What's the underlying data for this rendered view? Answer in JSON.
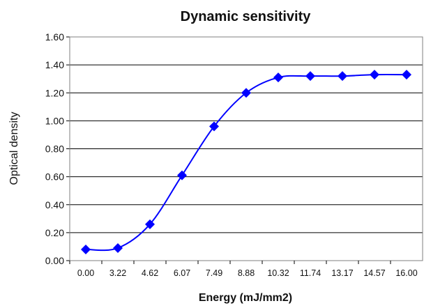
{
  "chart_data": {
    "type": "line",
    "title": "Dynamic sensitivity",
    "xlabel": "Energy (mJ/mm2)",
    "ylabel": "Optical density",
    "categories": [
      "0.00",
      "3.22",
      "4.62",
      "6.07",
      "7.49",
      "8.88",
      "10.32",
      "11.74",
      "13.17",
      "14.57",
      "16.00"
    ],
    "series": [
      {
        "values": [
          0.08,
          0.09,
          0.26,
          0.61,
          0.96,
          1.2,
          1.31,
          1.32,
          1.32,
          1.33,
          1.33
        ]
      }
    ],
    "ylim": [
      0,
      1.6
    ],
    "yticks": [
      "0.00",
      "0.20",
      "0.40",
      "0.60",
      "0.80",
      "1.00",
      "1.20",
      "1.40",
      "1.60"
    ],
    "grid": true,
    "legend": "none",
    "line_color": "#0000ff",
    "marker": "diamond"
  }
}
